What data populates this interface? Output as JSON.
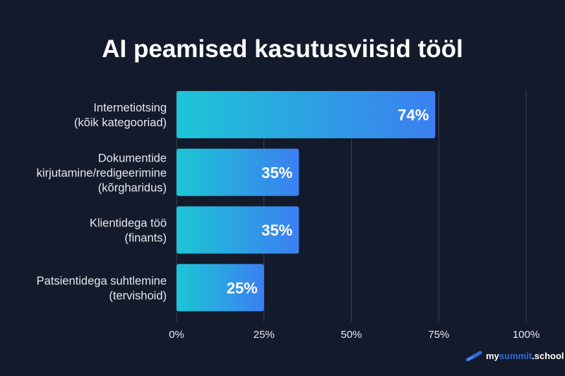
{
  "chart_data": {
    "type": "bar",
    "orientation": "horizontal",
    "title": "AI peamised kasutusviisid tööl",
    "categories": [
      [
        "Internetiotsing",
        "(kõik kategooriad)"
      ],
      [
        "Dokumentide",
        "kirjutamine/redigeerimine",
        "(kõrgharidus)"
      ],
      [
        "Klientidega töö",
        "(finants)"
      ],
      [
        "Patsientidega suhtlemine",
        "(tervishoid)"
      ]
    ],
    "values": [
      74,
      35,
      35,
      25
    ],
    "data_labels": [
      "74%",
      "35%",
      "35%",
      "25%"
    ],
    "xlim": [
      0,
      100
    ],
    "xticks": [
      0,
      25,
      50,
      75,
      100
    ],
    "xtick_labels": [
      "0%",
      "25%",
      "50%",
      "75%",
      "100%"
    ],
    "grid": "vertical",
    "colors": {
      "background": "#131a2b",
      "bar_start": "#1cc6d6",
      "bar_end": "#3b7ff0",
      "grid": "#3a4256"
    }
  },
  "logo": {
    "part1": "my",
    "part2": "summit",
    "part3": ".school"
  }
}
